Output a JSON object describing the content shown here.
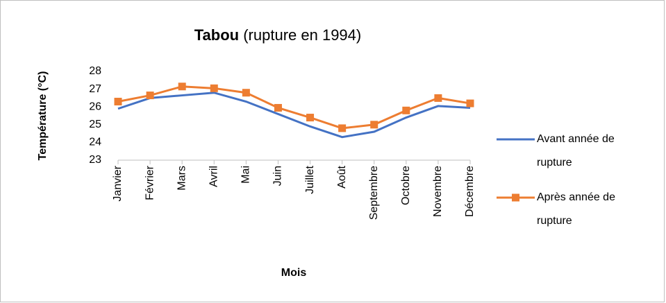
{
  "chart_data": {
    "type": "line",
    "title": "Tabou",
    "title_note": "(rupture en 1994)",
    "x_label": "Mois",
    "y_label": "Température (°C)",
    "categories": [
      "Janvier",
      "Février",
      "Mars",
      "Avril",
      "Mai",
      "Juin",
      "Juillet",
      "Août",
      "Septembre",
      "Octobre",
      "Novembre",
      "Décembre"
    ],
    "series": [
      {
        "name": "Avant année de rupture",
        "color": "#4472c4",
        "marker": "none",
        "values": [
          25.9,
          26.5,
          26.65,
          26.8,
          26.3,
          25.6,
          24.9,
          24.3,
          24.6,
          25.4,
          26.05,
          25.95
        ]
      },
      {
        "name": "Après année de rupture",
        "color": "#ed7d31",
        "marker": "square",
        "values": [
          26.3,
          26.65,
          27.15,
          27.05,
          26.8,
          25.95,
          25.4,
          24.8,
          25.0,
          25.8,
          26.5,
          26.2
        ]
      }
    ],
    "ylim": [
      23,
      28
    ],
    "yticks": [
      23,
      24,
      25,
      26,
      27,
      28
    ],
    "grid": false,
    "legend": "right"
  }
}
